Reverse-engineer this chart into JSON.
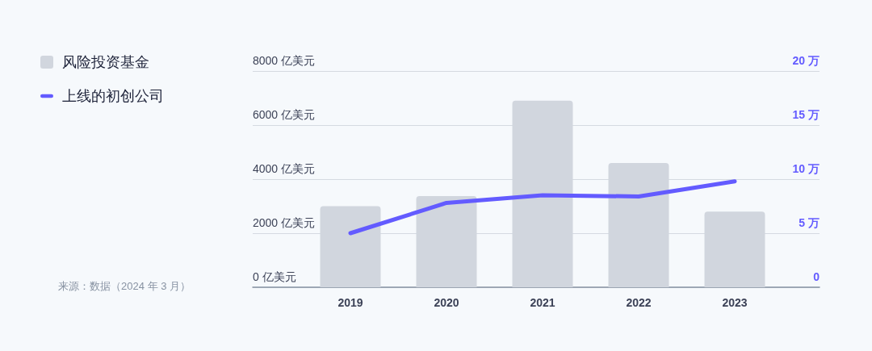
{
  "chart_data": {
    "type": "bar",
    "categories": [
      "2019",
      "2020",
      "2021",
      "2022",
      "2023"
    ],
    "series": [
      {
        "name": "风险投资基金",
        "color": "#d1d6de",
        "values": [
          3000,
          3370,
          6900,
          4600,
          2800
        ]
      },
      {
        "name": "上线的初创公司",
        "type": "line",
        "axis": "y2",
        "color": "#635bff",
        "values": [
          5,
          7.8,
          8.5,
          8.4,
          9.8
        ]
      }
    ],
    "ylim": [
      0,
      8000
    ],
    "yticks": [
      {
        "value": 0,
        "label": "0 亿美元"
      },
      {
        "value": 2000,
        "label": "2000 亿美元"
      },
      {
        "value": 4000,
        "label": "4000 亿美元"
      },
      {
        "value": 6000,
        "label": "6000 亿美元"
      },
      {
        "value": 8000,
        "label": "8000 亿美元"
      }
    ],
    "y2lim": [
      0,
      20
    ],
    "y2ticks": [
      0,
      {
        "value": 5,
        "label": "5 万"
      },
      {
        "value": 10,
        "label": "10 万"
      },
      {
        "value": 15,
        "label": "15 万"
      },
      {
        "value": 20,
        "label": "20 万"
      }
    ],
    "grid": "y",
    "legend": "top left",
    "marker": "none",
    "line_style": "solid",
    "annotations": [
      "来源：数据（2024 年 3 月）"
    ]
  }
}
